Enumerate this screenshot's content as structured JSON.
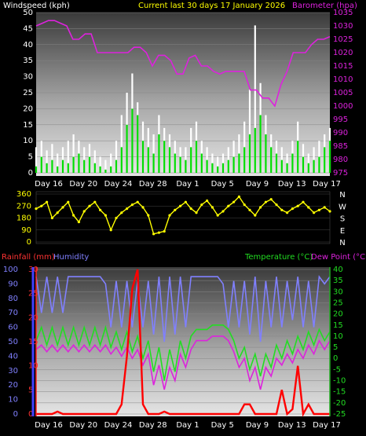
{
  "header": {
    "left": "Windspeed (kph)",
    "center": "Current last 30 days 17 January 2026",
    "right": "Barometer (hpa)"
  },
  "bottom_header": {
    "rain": "Rainfall (mm)",
    "humidity": "Humidity",
    "temp": "Temperature (°C)",
    "dew": "Dew Point (°C)"
  },
  "colors": {
    "wind_avg": "#00dd00",
    "wind_gust": "#ffffff",
    "barometer": "#dd22dd",
    "direction": "#ffff00",
    "rain": "#ff0000",
    "humidity": "#8080ff",
    "temperature": "#22dd22",
    "dewpoint": "#dd22dd"
  },
  "chart_data": [
    {
      "type": "line",
      "series_labels": [
        "Windspeed (kph)",
        "Barometer (hpa)"
      ],
      "left_ticks": [
        "0",
        "5",
        "10",
        "15",
        "20",
        "25",
        "30",
        "35",
        "40",
        "45",
        "50"
      ],
      "right_ticks": [
        "975",
        "980",
        "985",
        "990",
        "995",
        "1000",
        "1005",
        "1010",
        "1015",
        "1020",
        "1025",
        "1030",
        "1035"
      ],
      "x_ticks": [
        "Day 16",
        "Day 20",
        "Day 24",
        "Day 28",
        "Day 1",
        "Day 5",
        "Day 9",
        "Day 13",
        "Day 17"
      ],
      "ylim_left": [
        0,
        50
      ],
      "ylim_right": [
        975,
        1035
      ],
      "barometer": [
        1030,
        1031,
        1032,
        1032,
        1031,
        1030,
        1025,
        1025,
        1027,
        1027,
        1020,
        1020,
        1020,
        1020,
        1020,
        1020,
        1022,
        1022,
        1020,
        1015,
        1019,
        1019,
        1017,
        1012,
        1012,
        1018,
        1019,
        1015,
        1015,
        1013,
        1012,
        1013,
        1013,
        1013,
        1013,
        1006,
        1006,
        1003,
        1003,
        1000,
        1008,
        1013,
        1020,
        1020,
        1020,
        1023,
        1025,
        1025,
        1026
      ],
      "wind_avg": [
        2,
        5,
        3,
        4,
        2,
        4,
        3,
        5,
        6,
        4,
        5,
        3,
        2,
        1,
        2,
        4,
        8,
        15,
        20,
        18,
        10,
        8,
        6,
        12,
        10,
        8,
        6,
        5,
        4,
        8,
        10,
        6,
        4,
        3,
        2,
        3,
        4,
        5,
        6,
        8,
        12,
        14,
        18,
        12,
        8,
        6,
        4,
        3,
        6,
        10,
        5,
        3,
        4,
        5,
        8,
        10
      ],
      "wind_gust": [
        8,
        10,
        7,
        9,
        6,
        8,
        10,
        12,
        10,
        8,
        9,
        7,
        5,
        4,
        6,
        10,
        18,
        25,
        31,
        22,
        16,
        14,
        12,
        18,
        14,
        12,
        10,
        8,
        8,
        14,
        16,
        10,
        8,
        6,
        5,
        6,
        8,
        10,
        12,
        16,
        26,
        46,
        28,
        18,
        12,
        10,
        8,
        6,
        10,
        16,
        9,
        6,
        8,
        10,
        12,
        14
      ]
    },
    {
      "type": "scatter",
      "series_labels": [
        "Wind direction"
      ],
      "left_ticks": [
        "360",
        "270",
        "180",
        "90",
        "0"
      ],
      "compass": [
        "N",
        "W",
        "S",
        "E",
        "N"
      ],
      "ylim": [
        0,
        360
      ],
      "direction": [
        250,
        270,
        300,
        180,
        220,
        260,
        300,
        200,
        150,
        230,
        270,
        300,
        240,
        200,
        90,
        180,
        220,
        250,
        280,
        300,
        260,
        200,
        60,
        70,
        80,
        200,
        240,
        270,
        300,
        250,
        220,
        280,
        310,
        260,
        200,
        230,
        270,
        300,
        340,
        280,
        240,
        200,
        260,
        300,
        320,
        280,
        240,
        220,
        250,
        270,
        300,
        260,
        220,
        240,
        260,
        230
      ]
    },
    {
      "type": "line",
      "series_labels": [
        "Rainfall (mm)",
        "Humidity",
        "Temperature (°C)",
        "Dew Point (°C)"
      ],
      "humidity_ticks": [
        "0",
        "10",
        "20",
        "30",
        "40",
        "50",
        "60",
        "70",
        "80",
        "90",
        "100"
      ],
      "rain_ticks": [
        "0",
        "5",
        "10",
        "15",
        "20",
        "25",
        "30"
      ],
      "temp_ticks": [
        "-25",
        "-20",
        "-15",
        "-10",
        "-5",
        "0",
        "5",
        "10",
        "15",
        "20",
        "25",
        "30",
        "35",
        "40"
      ],
      "x_ticks": [
        "Day 16",
        "Day 20",
        "Day 24",
        "Day 28",
        "Day 1",
        "Day 5",
        "Day 9",
        "Day 13",
        "Day 17"
      ],
      "ylim_humidity": [
        0,
        100
      ],
      "ylim_rain": [
        0,
        30
      ],
      "ylim_temp": [
        -25,
        40
      ],
      "humidity": [
        95,
        70,
        95,
        70,
        95,
        70,
        95,
        95,
        95,
        95,
        95,
        95,
        95,
        90,
        60,
        92,
        60,
        92,
        60,
        92,
        60,
        92,
        55,
        95,
        50,
        95,
        55,
        95,
        60,
        95,
        95,
        95,
        95,
        95,
        95,
        90,
        60,
        92,
        60,
        92,
        55,
        95,
        50,
        92,
        60,
        95,
        60,
        92,
        65,
        95,
        60,
        92,
        60,
        95,
        90,
        95
      ],
      "temperature": [
        8,
        14,
        6,
        14,
        6,
        14,
        6,
        14,
        6,
        14,
        6,
        14,
        6,
        14,
        5,
        12,
        4,
        12,
        3,
        10,
        0,
        8,
        -6,
        5,
        -10,
        4,
        -6,
        8,
        0,
        10,
        13,
        13,
        13,
        15,
        15,
        15,
        13,
        8,
        0,
        5,
        -5,
        2,
        -8,
        2,
        -4,
        6,
        0,
        8,
        2,
        10,
        4,
        12,
        6,
        13,
        8,
        12
      ],
      "dewpoint": [
        4,
        6,
        3,
        6,
        3,
        6,
        3,
        6,
        3,
        6,
        3,
        6,
        3,
        6,
        2,
        5,
        1,
        5,
        0,
        4,
        -3,
        2,
        -12,
        -3,
        -14,
        -4,
        -10,
        2,
        -4,
        4,
        8,
        8,
        8,
        10,
        10,
        10,
        8,
        3,
        -4,
        0,
        -10,
        -4,
        -14,
        -4,
        -8,
        0,
        -3,
        2,
        -2,
        4,
        0,
        6,
        2,
        8,
        4,
        8
      ],
      "rainfall": [
        0,
        0,
        0,
        0,
        0.5,
        0,
        0,
        0,
        0,
        0,
        0,
        0,
        0,
        0,
        0,
        0,
        2,
        12,
        26,
        30,
        2,
        0,
        0,
        0,
        0.5,
        0,
        0,
        0,
        0,
        0,
        0,
        0,
        0,
        0,
        0,
        0,
        0,
        0,
        0,
        2,
        2,
        0,
        0,
        0,
        0,
        0,
        5,
        0,
        1,
        10,
        0,
        2,
        0,
        0,
        0,
        0
      ]
    }
  ]
}
